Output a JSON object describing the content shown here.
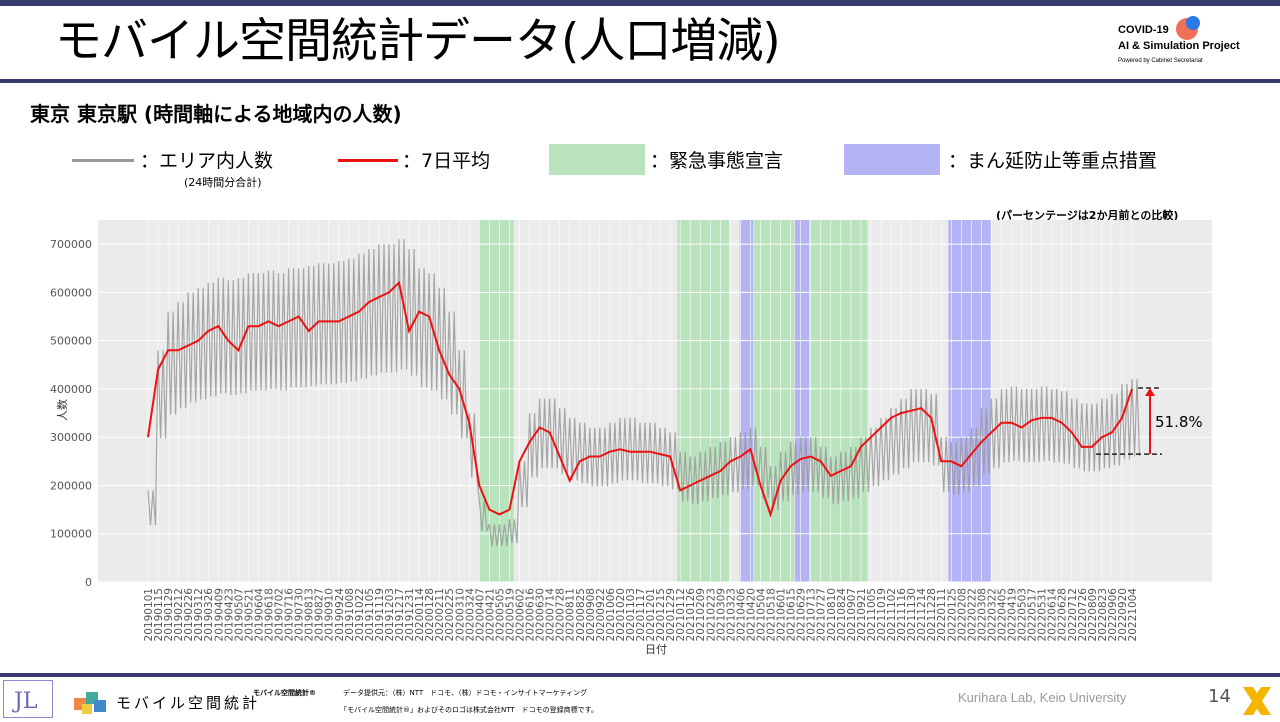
{
  "header": {
    "title": "モバイル空間統計データ(人口増減)",
    "logo_line1": "COVID-19",
    "logo_line2": "AI & Simulation Project",
    "logo_line3": "Powered by Cabinet Secretariat"
  },
  "subtitle": "東京 東京駅 (時間軸による地域内の人数)",
  "legend": {
    "gray_label": "：エリア内人数",
    "gray_sub": "(24時間分合計)",
    "red_label": "：7日平均",
    "green_label": "：緊急事態宣言",
    "blue_label": "：まん延防止等重点措置"
  },
  "colors": {
    "header_bar": "#3a3a72",
    "gray_series": "#999999",
    "red_series": "#ee1111",
    "emergency": "#b9e3bd",
    "semi_emergency": "#b4b4f4",
    "plot_bg": "#ebebeb"
  },
  "chart_data": {
    "type": "line",
    "note": "(パーセンテージは2か月前との比較)",
    "xlabel": "日付",
    "ylabel": "人数",
    "ylim": [
      0,
      750000
    ],
    "y_ticks": [
      "0",
      "100000",
      "200000",
      "300000",
      "400000",
      "500000",
      "600000",
      "700000"
    ],
    "x_ticks": [
      "20190101",
      "20190115",
      "20190129",
      "20190212",
      "20190226",
      "20190312",
      "20190326",
      "20190409",
      "20190423",
      "20190507",
      "20190521",
      "20190604",
      "20190618",
      "20190702",
      "20190716",
      "20190730",
      "20190813",
      "20190827",
      "20190910",
      "20190924",
      "20191008",
      "20191022",
      "20191105",
      "20191119",
      "20191203",
      "20191217",
      "20191231",
      "20200114",
      "20200128",
      "20200211",
      "20200225",
      "20200310",
      "20200324",
      "20200407",
      "20200421",
      "20200505",
      "20200519",
      "20200602",
      "20200616",
      "20200630",
      "20200714",
      "20200728",
      "20200811",
      "20200825",
      "20200908",
      "20200922",
      "20201006",
      "20201020",
      "20201103",
      "20201117",
      "20201201",
      "20201215",
      "20201229",
      "20210112",
      "20210126",
      "20210209",
      "20210223",
      "20210309",
      "20210323",
      "20210406",
      "20210420",
      "20210504",
      "20210518",
      "20210601",
      "20210615",
      "20210629",
      "20210713",
      "20210727",
      "20210810",
      "20210824",
      "20210907",
      "20210921",
      "20211005",
      "20211019",
      "20211102",
      "20211116",
      "20211130",
      "20211214",
      "20211228",
      "20220111",
      "20220125",
      "20220208",
      "20220222",
      "20220308",
      "20220322",
      "20220405",
      "20220419",
      "20220503",
      "20220517",
      "20220531",
      "20220614",
      "20220628",
      "20220712",
      "20220726",
      "20220809",
      "20220823",
      "20220906",
      "20220920",
      "20221004"
    ],
    "series": [
      {
        "name": "エリア内人数",
        "values": [
          190000,
          480000,
          560000,
          580000,
          600000,
          610000,
          620000,
          630000,
          625000,
          630000,
          640000,
          640000,
          645000,
          640000,
          650000,
          650000,
          655000,
          660000,
          660000,
          665000,
          670000,
          680000,
          690000,
          700000,
          700000,
          710000,
          690000,
          650000,
          640000,
          610000,
          560000,
          480000,
          350000,
          170000,
          120000,
          120000,
          130000,
          250000,
          350000,
          380000,
          380000,
          360000,
          340000,
          330000,
          320000,
          320000,
          330000,
          340000,
          340000,
          330000,
          330000,
          320000,
          310000,
          270000,
          260000,
          270000,
          280000,
          290000,
          300000,
          310000,
          320000,
          280000,
          240000,
          270000,
          290000,
          300000,
          300000,
          280000,
          260000,
          270000,
          280000,
          300000,
          320000,
          340000,
          360000,
          380000,
          400000,
          400000,
          390000,
          300000,
          290000,
          300000,
          320000,
          360000,
          380000,
          400000,
          405000,
          400000,
          400000,
          405000,
          400000,
          395000,
          380000,
          370000,
          370000,
          380000,
          390000,
          410000,
          420000
        ]
      },
      {
        "name": "7日平均",
        "values": [
          300000,
          440000,
          480000,
          480000,
          490000,
          500000,
          520000,
          530000,
          500000,
          480000,
          530000,
          530000,
          540000,
          530000,
          540000,
          550000,
          520000,
          540000,
          540000,
          540000,
          550000,
          560000,
          580000,
          590000,
          600000,
          620000,
          520000,
          560000,
          550000,
          480000,
          430000,
          400000,
          330000,
          200000,
          150000,
          140000,
          150000,
          250000,
          290000,
          320000,
          310000,
          260000,
          210000,
          250000,
          260000,
          260000,
          270000,
          275000,
          270000,
          270000,
          270000,
          265000,
          260000,
          190000,
          200000,
          210000,
          220000,
          230000,
          250000,
          260000,
          275000,
          200000,
          140000,
          210000,
          240000,
          255000,
          260000,
          250000,
          220000,
          230000,
          240000,
          280000,
          300000,
          320000,
          340000,
          350000,
          355000,
          360000,
          340000,
          250000,
          250000,
          240000,
          265000,
          290000,
          310000,
          330000,
          330000,
          320000,
          335000,
          340000,
          340000,
          330000,
          310000,
          280000,
          280000,
          300000,
          310000,
          340000,
          400000
        ]
      }
    ],
    "shaded_periods": [
      {
        "type": "緊急事態宣言",
        "start": "20200407",
        "end": "20200525"
      },
      {
        "type": "緊急事態宣言",
        "start": "20210108",
        "end": "20210321"
      },
      {
        "type": "まん延防止等重点措置",
        "start": "20210405",
        "end": "20210424"
      },
      {
        "type": "緊急事態宣言",
        "start": "20210425",
        "end": "20210620"
      },
      {
        "type": "まん延防止等重点措置",
        "start": "20210621",
        "end": "20210711"
      },
      {
        "type": "緊急事態宣言",
        "start": "20210712",
        "end": "20210930"
      },
      {
        "type": "まん延防止等重点措置",
        "start": "20220121",
        "end": "20220321"
      }
    ],
    "annotation": {
      "label": "51.8%",
      "from_value": 265000,
      "to_value": 402000
    }
  },
  "footer": {
    "brand": "モバイル空間統計",
    "brand_small": "モバイル空間統計®",
    "provider": "データ提供元：（株）NTT　ドコモ、（株）ドコモ・インサイトマーケティング",
    "trademark": "「モバイル空間統計®」およびそのロゴは株式会社NTT　ドコモの登録商標です。",
    "lab": "Kurihara Lab, Keio University",
    "page": "14"
  }
}
